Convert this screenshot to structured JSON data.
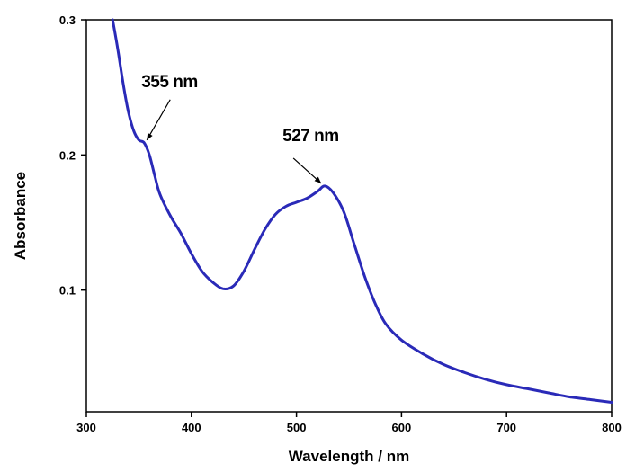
{
  "chart_data": {
    "type": "line",
    "xlabel": "Wavelength / nm",
    "ylabel": "Absorbance",
    "xlim": [
      300,
      800
    ],
    "ylim": [
      0.01,
      0.3
    ],
    "xticks": [
      "300",
      "400",
      "500",
      "600",
      "700",
      "800"
    ],
    "yticks": [
      "0.1",
      "0.2",
      "0.3"
    ],
    "series": [
      {
        "color": "#2a2ab8",
        "x": [
          325,
          330,
          335,
          340,
          345,
          350,
          355,
          360,
          365,
          370,
          380,
          390,
          400,
          410,
          420,
          430,
          440,
          450,
          460,
          470,
          480,
          490,
          500,
          510,
          520,
          527,
          535,
          545,
          555,
          565,
          575,
          585,
          600,
          620,
          640,
          660,
          680,
          700,
          720,
          740,
          760,
          780,
          800
        ],
        "y": [
          0.3,
          0.278,
          0.253,
          0.232,
          0.218,
          0.211,
          0.209,
          0.2,
          0.185,
          0.171,
          0.155,
          0.142,
          0.127,
          0.114,
          0.106,
          0.101,
          0.103,
          0.114,
          0.13,
          0.145,
          0.156,
          0.162,
          0.165,
          0.168,
          0.173,
          0.177,
          0.172,
          0.158,
          0.134,
          0.11,
          0.09,
          0.075,
          0.063,
          0.053,
          0.045,
          0.039,
          0.034,
          0.03,
          0.027,
          0.024,
          0.021,
          0.019,
          0.017
        ]
      }
    ],
    "annotations": [
      {
        "text": "355 nm",
        "x": 355,
        "y": 0.209
      },
      {
        "text": "527 nm",
        "x": 527,
        "y": 0.177
      }
    ]
  }
}
